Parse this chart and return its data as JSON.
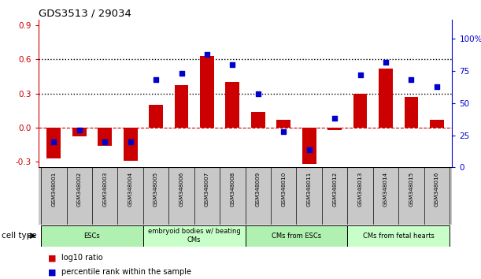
{
  "title": "GDS3513 / 29034",
  "samples": [
    "GSM348001",
    "GSM348002",
    "GSM348003",
    "GSM348004",
    "GSM348005",
    "GSM348006",
    "GSM348007",
    "GSM348008",
    "GSM348009",
    "GSM348010",
    "GSM348011",
    "GSM348012",
    "GSM348013",
    "GSM348014",
    "GSM348015",
    "GSM348016"
  ],
  "log10_ratio": [
    -0.27,
    -0.08,
    -0.16,
    -0.29,
    0.2,
    0.37,
    0.63,
    0.4,
    0.14,
    0.07,
    -0.32,
    -0.02,
    0.3,
    0.52,
    0.27,
    0.07
  ],
  "percentile_rank": [
    20,
    29,
    20,
    20,
    68,
    73,
    88,
    80,
    57,
    28,
    14,
    38,
    72,
    82,
    68,
    63
  ],
  "bar_color": "#cc0000",
  "dot_color": "#0000cc",
  "ylim_left": [
    -0.35,
    0.95
  ],
  "ylim_right": [
    0,
    115
  ],
  "yticks_left": [
    -0.3,
    0.0,
    0.3,
    0.6,
    0.9
  ],
  "yticks_right": [
    0,
    25,
    50,
    75,
    100
  ],
  "yticklabels_right": [
    "0",
    "25",
    "50",
    "75",
    "100%"
  ],
  "hlines": [
    0.3,
    0.6
  ],
  "zero_line_color": "#cc0000",
  "hline_color": "black",
  "cell_type_groups": [
    {
      "label": "ESCs",
      "start": 0,
      "end": 3,
      "color": "#b0f0b0"
    },
    {
      "label": "embryoid bodies w/ beating\nCMs",
      "start": 4,
      "end": 7,
      "color": "#c8ffc8"
    },
    {
      "label": "CMs from ESCs",
      "start": 8,
      "end": 11,
      "color": "#b0f0b0"
    },
    {
      "label": "CMs from fetal hearts",
      "start": 12,
      "end": 15,
      "color": "#c8ffc8"
    }
  ],
  "cell_type_label": "cell type",
  "legend_items": [
    {
      "color": "#cc0000",
      "label": "log10 ratio"
    },
    {
      "color": "#0000cc",
      "label": "percentile rank within the sample"
    }
  ],
  "xtick_bg": "#c8c8c8"
}
